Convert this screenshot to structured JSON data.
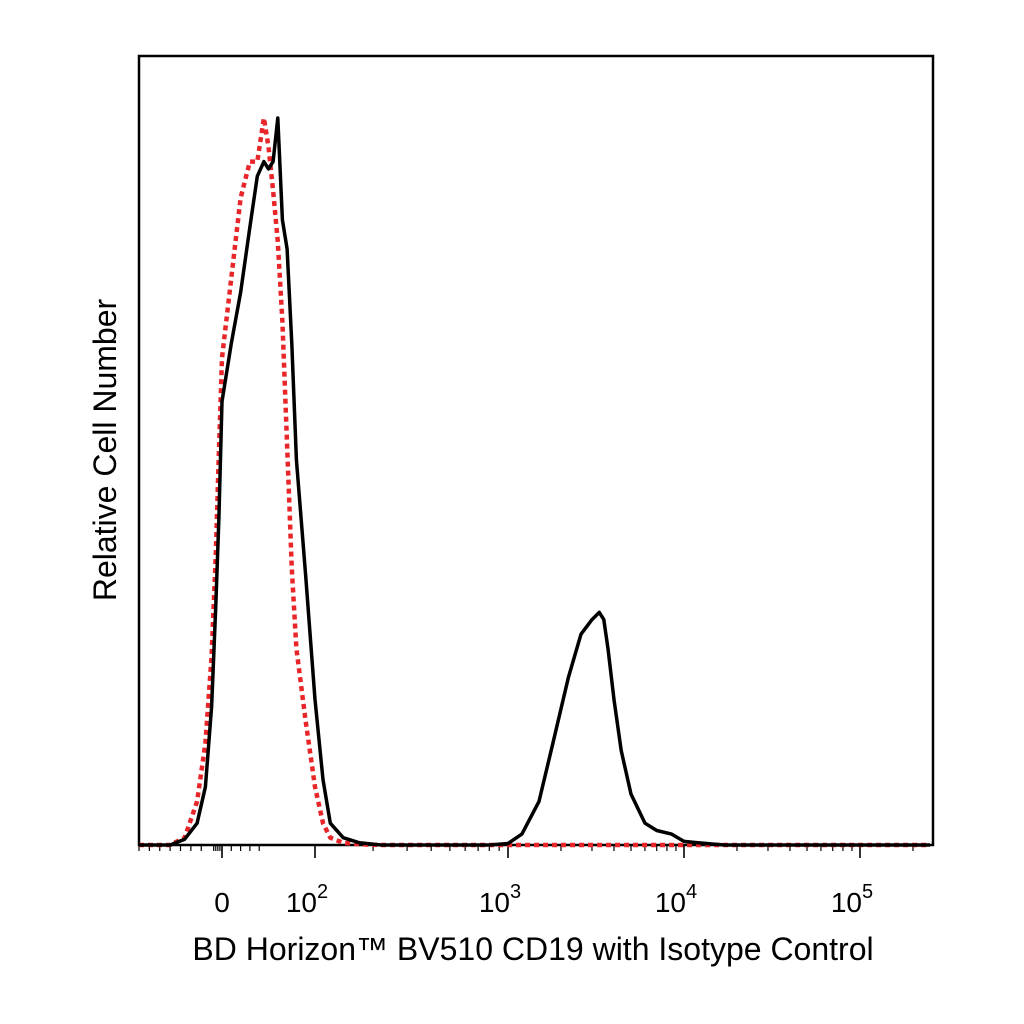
{
  "chart_data": {
    "type": "line",
    "title": "",
    "xlabel": "BD Horizon™ BV510 CD19 with Isotype Control",
    "ylabel": "Relative Cell Number",
    "x_scale": "biexponential",
    "xlim": [
      -400,
      250000
    ],
    "ylim": [
      0,
      100
    ],
    "grid": false,
    "legend": "none",
    "x_ticks": [
      {
        "value": 0,
        "base": "0",
        "exp": ""
      },
      {
        "value": 100,
        "base": "10",
        "exp": "2"
      },
      {
        "value": 1000,
        "base": "10",
        "exp": "3"
      },
      {
        "value": 10000,
        "base": "10",
        "exp": "4"
      },
      {
        "value": 100000,
        "base": "10",
        "exp": "5"
      }
    ],
    "series": [
      {
        "color": "#000000",
        "dash": "solid",
        "x": [
          -400,
          -250,
          -180,
          -120,
          -80,
          -50,
          -30,
          -15,
          0,
          10,
          20,
          30,
          38,
          45,
          50,
          55,
          60,
          65,
          70,
          75,
          80,
          90,
          100,
          110,
          120,
          140,
          170,
          220,
          300,
          500,
          800,
          1000,
          1200,
          1500,
          1800,
          2200,
          2600,
          3000,
          3300,
          3500,
          3700,
          4000,
          4400,
          5000,
          6000,
          7000,
          8500,
          10000,
          12000,
          15000,
          17000,
          25000,
          100000,
          250000
        ],
        "y": [
          0,
          0,
          0.8,
          3,
          8,
          19,
          33,
          45,
          61,
          69,
          76,
          85,
          92,
          94,
          93,
          94,
          100,
          86,
          82,
          69,
          53,
          37,
          20,
          9,
          3,
          1,
          0.3,
          0,
          0,
          0,
          0,
          0.2,
          1.5,
          6,
          14,
          23,
          29,
          31,
          32,
          31,
          27,
          20,
          13,
          7,
          3,
          2,
          1.5,
          0.5,
          0.3,
          0.1,
          0,
          0,
          0,
          0
        ]
      },
      {
        "color": "#e8262a",
        "dash": "dotted",
        "x": [
          -400,
          -250,
          -180,
          -120,
          -80,
          -50,
          -30,
          -15,
          0,
          10,
          20,
          30,
          38,
          45,
          50,
          55,
          60,
          65,
          70,
          75,
          80,
          90,
          100,
          110,
          120,
          140,
          170,
          220,
          300,
          1000,
          10000,
          100000,
          250000
        ],
        "y": [
          0,
          0,
          1,
          6,
          14,
          26,
          40,
          54,
          67,
          78,
          89,
          94,
          94,
          100,
          96,
          90,
          83,
          72,
          55,
          38,
          27,
          17,
          8,
          3,
          1,
          0.3,
          0.1,
          0,
          0,
          0,
          0,
          0,
          0
        ]
      }
    ]
  }
}
